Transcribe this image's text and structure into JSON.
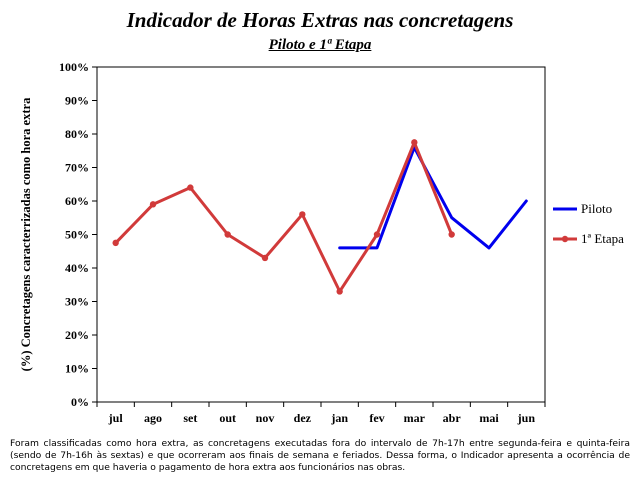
{
  "chart_data": {
    "type": "line",
    "title": "Indicador de Horas Extras nas concretagens",
    "subtitle": "Piloto e 1ª Etapa",
    "ylabel": "(%) Concretagens caracterrizadas como hora extra",
    "xlabel": "",
    "categories": [
      "jul",
      "ago",
      "set",
      "out",
      "nov",
      "dez",
      "jan",
      "fev",
      "mar",
      "abr",
      "mai",
      "jun"
    ],
    "yticks": [
      "0%",
      "10%",
      "20%",
      "30%",
      "40%",
      "50%",
      "60%",
      "70%",
      "80%",
      "90%",
      "100%"
    ],
    "ylim": [
      0,
      100
    ],
    "grid": false,
    "legend_position": "right",
    "series": [
      {
        "name": "Piloto",
        "color": "#0000ee",
        "marker": false,
        "values": [
          null,
          null,
          null,
          null,
          null,
          null,
          46,
          46,
          76,
          55,
          46,
          60
        ]
      },
      {
        "name": "1ª Etapa",
        "color": "#d13a3a",
        "marker": true,
        "values": [
          47.5,
          59,
          64,
          50,
          43,
          56,
          33,
          50,
          77.5,
          50,
          null,
          null
        ]
      }
    ]
  },
  "footnote": "Foram classificadas como hora extra, as concretagens executadas fora do intervalo de 7h-17h entre segunda-feira e quinta-feira (sendo de 7h-16h às sextas) e que ocorreram aos finais de semana e feriados. Dessa forma, o Indicador apresenta a ocorrência de concretagens em que haveria o pagamento de hora extra aos funcionários nas obras."
}
